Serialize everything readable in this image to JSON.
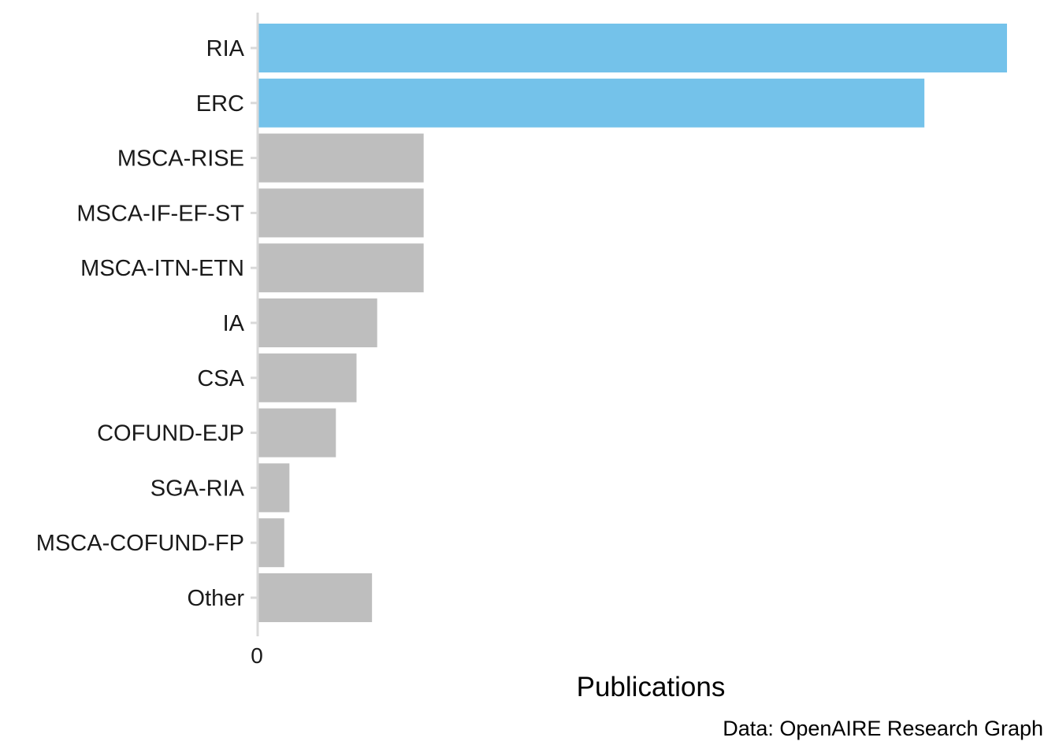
{
  "chart_data": {
    "type": "bar",
    "orientation": "horizontal",
    "categories": [
      "RIA",
      "ERC",
      "MSCA-RISE",
      "MSCA-IF-EF-ST",
      "MSCA-ITN-ETN",
      "IA",
      "CSA",
      "COFUND-EJP",
      "SGA-RIA",
      "MSCA-COFUND-FP",
      "Other"
    ],
    "values": [
      725,
      645,
      160,
      160,
      160,
      115,
      95,
      75,
      30,
      25,
      110
    ],
    "highlighted": [
      "RIA",
      "ERC"
    ],
    "highlight_color": "#74c2ea",
    "bar_color": "#bebebe",
    "axis_color": "#d9d9d9",
    "xlabel": "Publications",
    "ylabel": "",
    "xlim": [
      0,
      760
    ],
    "x_ticks": [
      0
    ],
    "x_tick_labels": [
      "0"
    ],
    "grid": false,
    "caption": "Data: OpenAIRE Research Graph"
  }
}
